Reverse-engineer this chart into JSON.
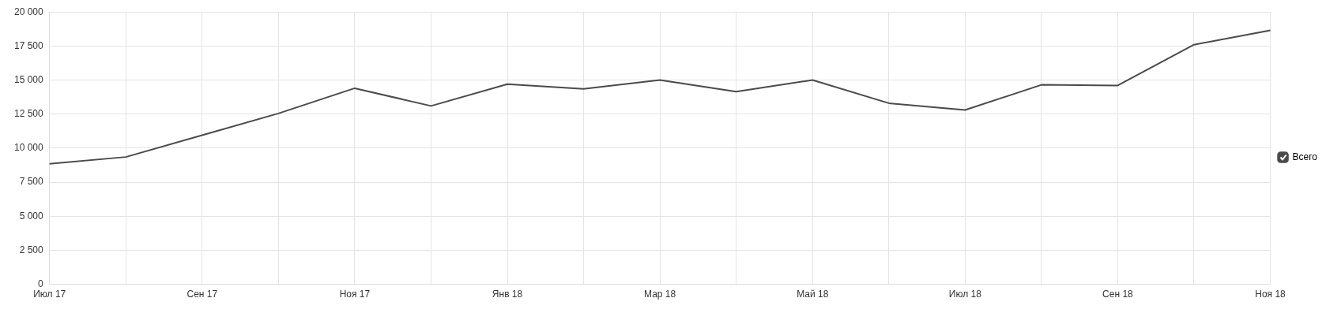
{
  "chart_data": {
    "type": "line",
    "categories": [
      "Июл 17",
      null,
      "Сен 17",
      null,
      "Ноя 17",
      null,
      "Янв 18",
      null,
      "Мар 18",
      null,
      "Май 18",
      null,
      "Июл 18",
      null,
      "Сен 18",
      null,
      "Ноя 18"
    ],
    "series": [
      {
        "name": "Всего",
        "color": "#4a4a4a",
        "values": [
          8850,
          9350,
          10950,
          12550,
          14400,
          13100,
          14700,
          14350,
          15000,
          14150,
          15000,
          13300,
          12800,
          14650,
          14600,
          17600,
          18650
        ]
      }
    ],
    "ylim": [
      0,
      20000
    ],
    "yticks": [
      0,
      {
        "value": 2500,
        "label": "2 500"
      },
      {
        "value": 5000,
        "label": "5 000"
      },
      {
        "value": 7500,
        "label": "7 500"
      },
      {
        "value": 10000,
        "label": "10 000"
      },
      {
        "value": 12500,
        "label": "12 500"
      },
      {
        "value": 15000,
        "label": "15 000"
      },
      {
        "value": 17500,
        "label": "17 500"
      },
      {
        "value": 20000,
        "label": "20 000"
      }
    ],
    "grid": true,
    "legend": "right",
    "marker": "none",
    "line_style": "solid"
  }
}
